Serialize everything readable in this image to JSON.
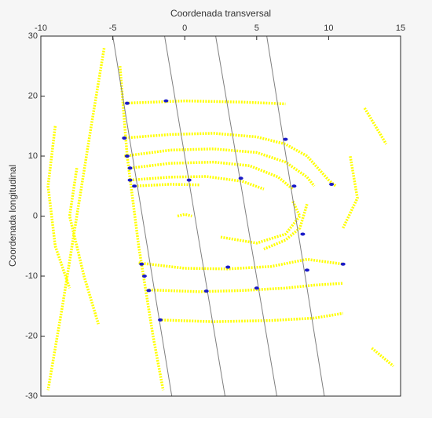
{
  "chart_data": {
    "type": "scatter",
    "xlabel": "Coordenada transversal",
    "ylabel": "Coordenada longitudinal",
    "xlim": [
      -10,
      15
    ],
    "ylim": [
      -30,
      30
    ],
    "xticks": [
      -10,
      -5,
      0,
      5,
      10,
      15
    ],
    "yticks": [
      30,
      20,
      10,
      0,
      -10,
      -20,
      -30
    ],
    "x_axis_position": "top",
    "series": [
      {
        "mode": "line",
        "color": "#ffff00",
        "x": [
          -5.6,
          -6.5,
          -7.5,
          -8.5,
          -9.5
        ],
        "y": [
          28,
          15,
          0,
          -15,
          -29
        ]
      },
      {
        "mode": "line",
        "color": "#ffff00",
        "x": [
          -4.5,
          -4,
          -3.2,
          -2.2,
          -1.5
        ],
        "y": [
          25,
          10,
          -5,
          -20,
          -29
        ]
      },
      {
        "mode": "line",
        "color": "#ffff00",
        "x": [
          -9,
          -9.5,
          -9,
          -8
        ],
        "y": [
          15,
          5,
          -5,
          -12
        ]
      },
      {
        "mode": "line",
        "color": "#ffff00",
        "x": [
          -7.5,
          -8,
          -7,
          -6
        ],
        "y": [
          8,
          0,
          -10,
          -18
        ]
      },
      {
        "mode": "line",
        "color": "#ffff00",
        "x": [
          -4.3,
          0,
          4,
          7
        ],
        "y": [
          18.8,
          19.2,
          19,
          18.7
        ]
      },
      {
        "mode": "line",
        "color": "#ffff00",
        "x": [
          -4.3,
          -1,
          2,
          5,
          7,
          8.5,
          10,
          10.5
        ],
        "y": [
          13,
          13.6,
          13.8,
          13.2,
          12,
          10,
          6,
          5
        ]
      },
      {
        "mode": "line",
        "color": "#ffff00",
        "x": [
          -4.2,
          -1,
          2,
          5,
          7,
          8.5,
          9
        ],
        "y": [
          10,
          11,
          11.2,
          10.6,
          9,
          6.5,
          5
        ]
      },
      {
        "mode": "line",
        "color": "#ffff00",
        "x": [
          -3.8,
          -1,
          2,
          4.5,
          6.5,
          7.5
        ],
        "y": [
          8,
          8.8,
          9,
          8.4,
          6.5,
          4.5
        ]
      },
      {
        "mode": "line",
        "color": "#ffff00",
        "x": [
          -3.8,
          -1,
          1.5,
          4,
          5.5
        ],
        "y": [
          6,
          6.5,
          6.6,
          5.8,
          4.5
        ]
      },
      {
        "mode": "line",
        "color": "#ffff00",
        "x": [
          -3.5,
          -1,
          1
        ],
        "y": [
          5,
          5.3,
          5.2
        ]
      },
      {
        "mode": "line",
        "color": "#ffff00",
        "x": [
          8.5,
          8,
          7,
          5.5
        ],
        "y": [
          2,
          -2,
          -4,
          -5.5
        ]
      },
      {
        "mode": "line",
        "color": "#ffff00",
        "x": [
          2.5,
          5,
          7,
          8,
          7.5
        ],
        "y": [
          -3.5,
          -4.5,
          -3,
          0,
          2.5
        ]
      },
      {
        "mode": "line",
        "color": "#ffff00",
        "x": [
          -0.5,
          0,
          0.5
        ],
        "y": [
          0,
          0.3,
          0
        ]
      },
      {
        "mode": "line",
        "color": "#ffff00",
        "x": [
          -3.2,
          0,
          3,
          6,
          8.5,
          11
        ],
        "y": [
          -7.8,
          -8.7,
          -8.8,
          -8.4,
          -7.2,
          -8
        ]
      },
      {
        "mode": "line",
        "color": "#ffff00",
        "x": [
          -2.5,
          1,
          4,
          7,
          9,
          11
        ],
        "y": [
          -12.3,
          -12.6,
          -12.4,
          -12,
          -11.5,
          -11.2
        ]
      },
      {
        "mode": "line",
        "color": "#ffff00",
        "x": [
          -1.8,
          2,
          6,
          9,
          11
        ],
        "y": [
          -17.3,
          -17.6,
          -17.4,
          -17,
          -16.2
        ]
      },
      {
        "mode": "line",
        "color": "#ffff00",
        "x": [
          11,
          12,
          11.5
        ],
        "y": [
          -2,
          3,
          10
        ]
      },
      {
        "mode": "line",
        "color": "#ffff00",
        "x": [
          12.5,
          14
        ],
        "y": [
          18,
          12
        ]
      },
      {
        "mode": "line",
        "color": "#ffff00",
        "x": [
          13,
          14.5
        ],
        "y": [
          -22,
          -25
        ]
      },
      {
        "mode": "line",
        "color": "#808080",
        "x": [
          -5,
          -0.9
        ],
        "y": [
          30,
          -30
        ]
      },
      {
        "mode": "line",
        "color": "#808080",
        "x": [
          -1.4,
          2.8
        ],
        "y": [
          30,
          -30
        ]
      },
      {
        "mode": "line",
        "color": "#808080",
        "x": [
          2.15,
          6.4
        ],
        "y": [
          30,
          -30
        ]
      },
      {
        "mode": "line",
        "color": "#808080",
        "x": [
          5.7,
          9.7
        ],
        "y": [
          30,
          -30
        ]
      },
      {
        "mode": "markers",
        "color": "#1a1ac8",
        "x": [
          -4,
          -1.3,
          -4.2,
          -4,
          -3.8,
          -3.8,
          -3.5,
          0.3,
          3.9,
          7,
          7.6,
          10.2,
          8.2,
          8.5,
          5,
          1.5,
          -3,
          -2.8,
          -2.5,
          -1.7,
          3,
          11
        ],
        "y": [
          18.8,
          19.2,
          13,
          10,
          8,
          6,
          5,
          6,
          6.3,
          12.8,
          5,
          5.3,
          -3,
          -9,
          -12,
          -12.5,
          -8,
          -10,
          -12.4,
          -17.3,
          -8.5,
          -8
        ]
      }
    ]
  }
}
